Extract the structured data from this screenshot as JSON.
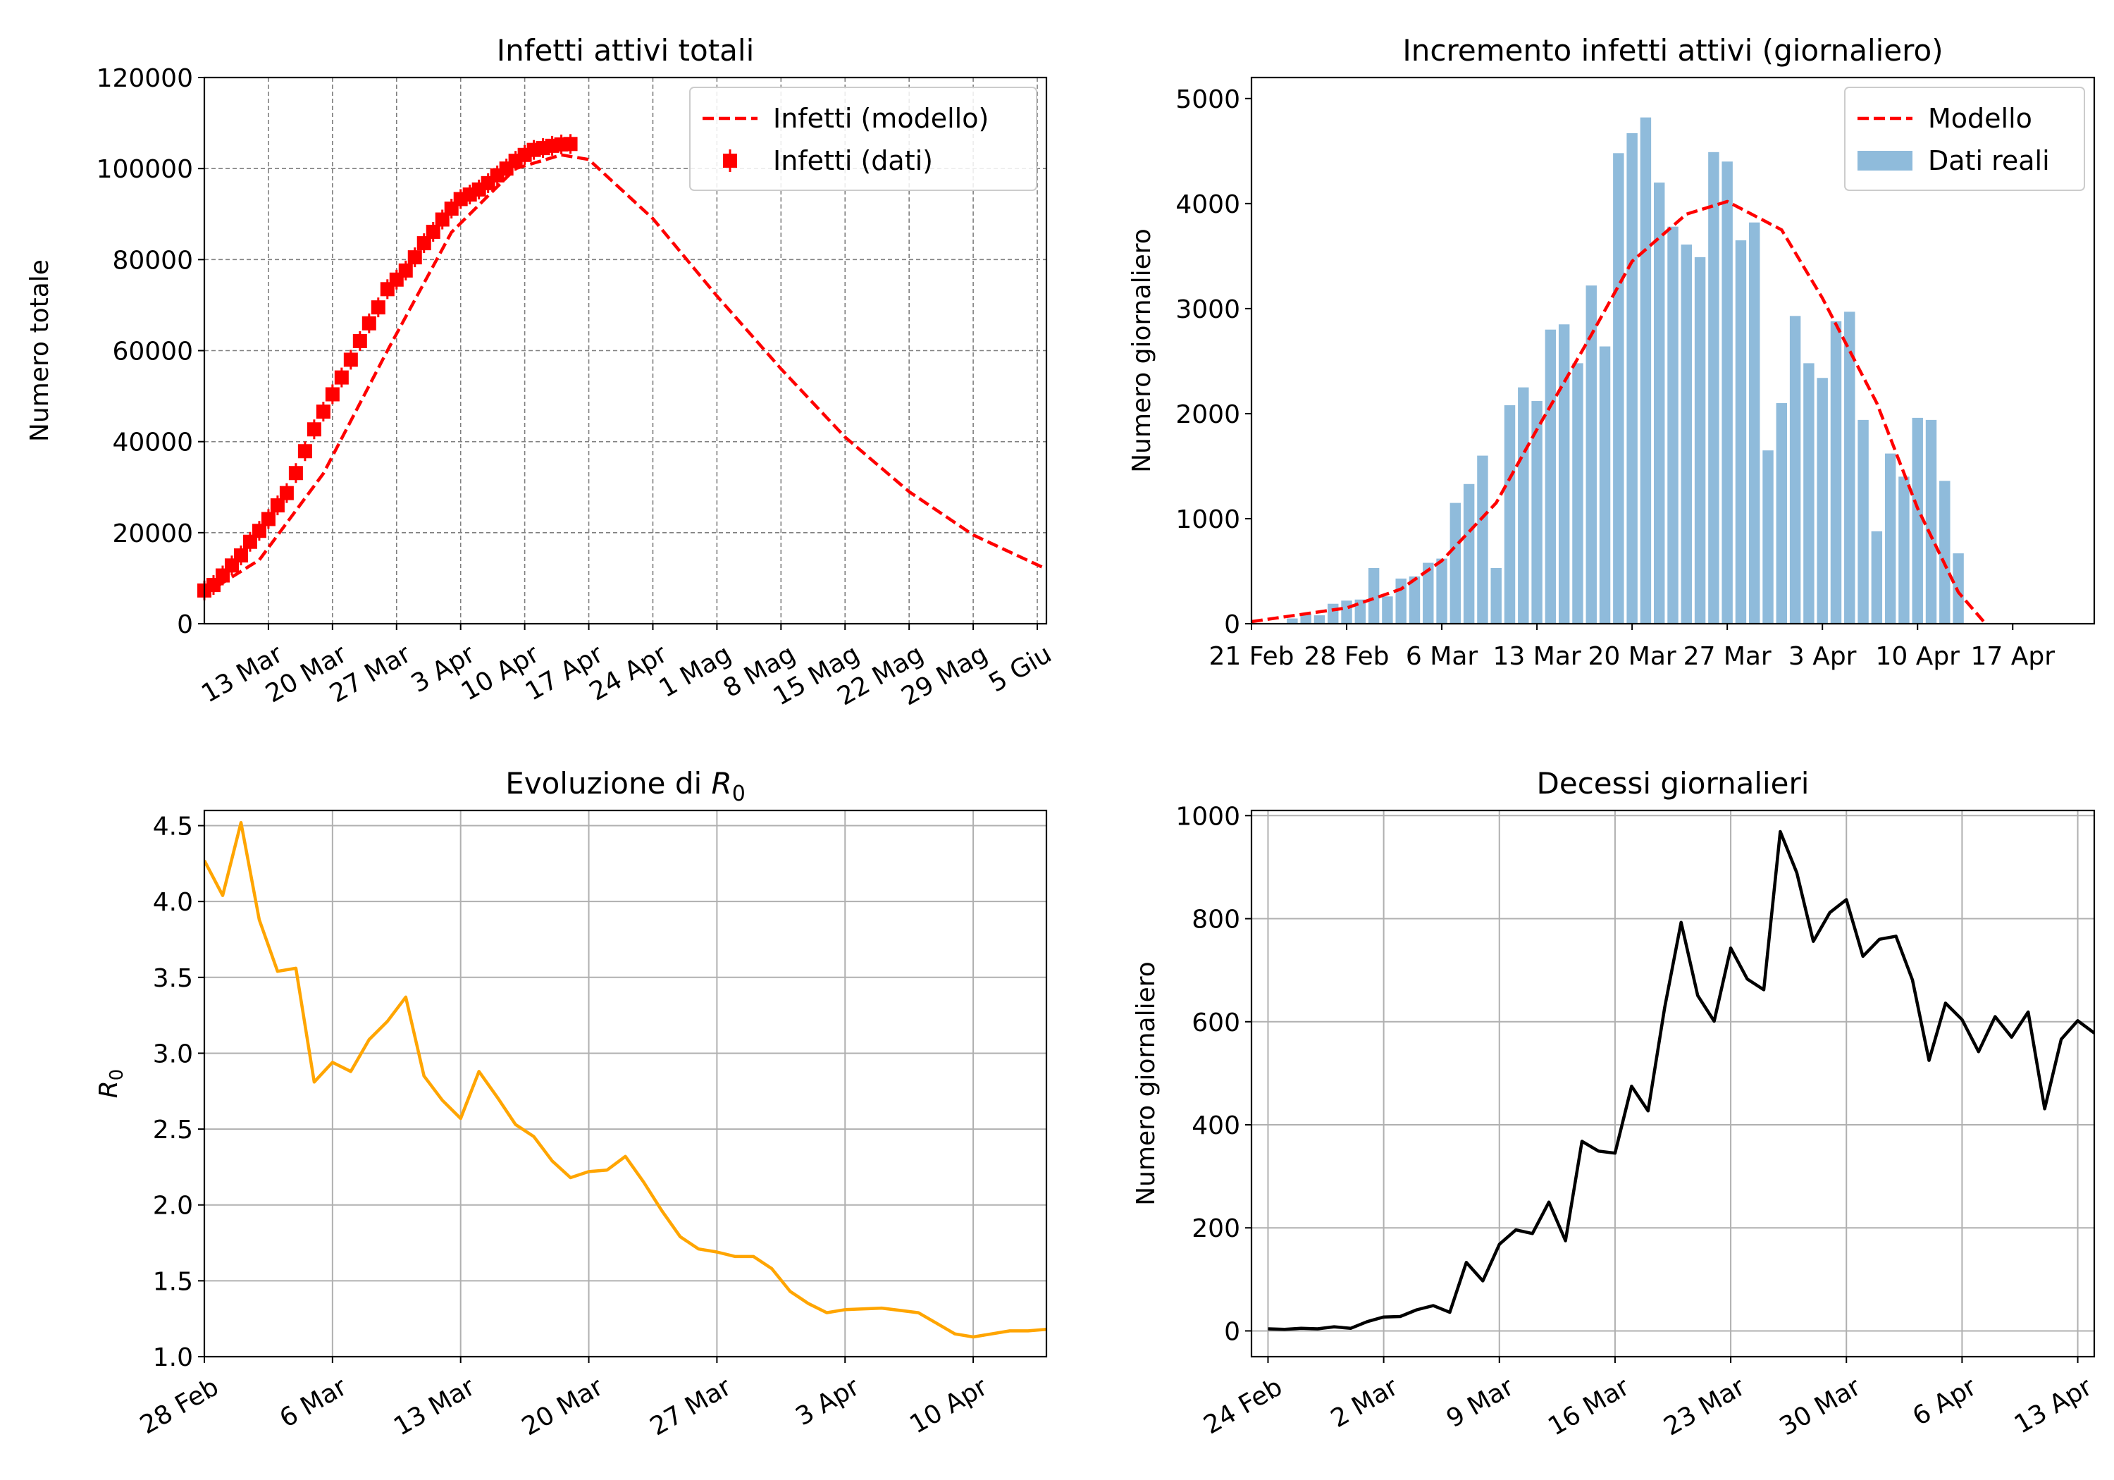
{
  "chart_data": [
    {
      "type": "line",
      "title": "Infetti attivi totali",
      "xlabel": "",
      "ylabel": "Numero totale",
      "grid": true,
      "legend_position": "top-right",
      "xlim": [
        "2020-03-06",
        "2020-06-06"
      ],
      "ylim": [
        0,
        120000
      ],
      "yticks": [
        0,
        20000,
        40000,
        60000,
        80000,
        100000,
        120000
      ],
      "xtick_dates": [
        "2020-03-13",
        "2020-03-20",
        "2020-03-27",
        "2020-04-03",
        "2020-04-10",
        "2020-04-17",
        "2020-04-24",
        "2020-05-01",
        "2020-05-08",
        "2020-05-15",
        "2020-05-22",
        "2020-05-29",
        "2020-06-05"
      ],
      "xtick_labels": [
        "13 Mar",
        "20 Mar",
        "27 Mar",
        "3 Apr",
        "10 Apr",
        "17 Apr",
        "24 Apr",
        "1 Mag",
        "8 Mag",
        "15 Mag",
        "22 Mag",
        "29 Mag",
        "5 Giu"
      ],
      "series": [
        {
          "name": "Infetti (modello)",
          "style": "dashed",
          "color": "#ff0000",
          "x": [
            "2020-03-06",
            "2020-03-12",
            "2020-03-19",
            "2020-03-26",
            "2020-04-02",
            "2020-04-09",
            "2020-04-14",
            "2020-04-17",
            "2020-04-24",
            "2020-05-01",
            "2020-05-08",
            "2020-05-15",
            "2020-05-22",
            "2020-05-29",
            "2020-06-06"
          ],
          "y": [
            6500,
            14000,
            33000,
            60000,
            86000,
            100000,
            103000,
            102000,
            89000,
            72000,
            56000,
            41000,
            29000,
            19500,
            12000
          ]
        },
        {
          "name": "Infetti (dati)",
          "style": "markers",
          "color": "#ff0000",
          "x": [
            "2020-03-06",
            "2020-03-07",
            "2020-03-08",
            "2020-03-09",
            "2020-03-10",
            "2020-03-11",
            "2020-03-12",
            "2020-03-13",
            "2020-03-14",
            "2020-03-15",
            "2020-03-16",
            "2020-03-17",
            "2020-03-18",
            "2020-03-19",
            "2020-03-20",
            "2020-03-21",
            "2020-03-22",
            "2020-03-23",
            "2020-03-24",
            "2020-03-25",
            "2020-03-26",
            "2020-03-27",
            "2020-03-28",
            "2020-03-29",
            "2020-03-30",
            "2020-03-31",
            "2020-04-01",
            "2020-04-02",
            "2020-04-03",
            "2020-04-04",
            "2020-04-05",
            "2020-04-06",
            "2020-04-07",
            "2020-04-08",
            "2020-04-09",
            "2020-04-10",
            "2020-04-11",
            "2020-04-12",
            "2020-04-13",
            "2020-04-14",
            "2020-04-15"
          ],
          "y": [
            7300,
            8500,
            10600,
            12800,
            15000,
            18000,
            20400,
            23000,
            26000,
            28700,
            33100,
            37900,
            42700,
            46600,
            50400,
            54100,
            58000,
            62100,
            66000,
            69500,
            73500,
            75600,
            77600,
            80500,
            83600,
            86100,
            88800,
            91200,
            93300,
            94300,
            95400,
            96800,
            98500,
            100000,
            101700,
            103000,
            104100,
            104500,
            105000,
            105300,
            105400
          ]
        }
      ]
    },
    {
      "type": "bar",
      "title": "Incremento infetti attivi (giornaliero)",
      "xlabel": "",
      "ylabel": "Numero giornaliero",
      "grid": false,
      "legend_position": "top-right",
      "xlim": [
        "2020-02-21",
        "2020-04-23"
      ],
      "ylim": [
        0,
        5200
      ],
      "yticks": [
        0,
        1000,
        2000,
        3000,
        4000,
        5000
      ],
      "xtick_dates": [
        "2020-02-21",
        "2020-02-28",
        "2020-03-06",
        "2020-03-13",
        "2020-03-20",
        "2020-03-27",
        "2020-04-03",
        "2020-04-10",
        "2020-04-17"
      ],
      "xtick_labels": [
        "21 Feb",
        "28 Feb",
        "6 Mar",
        "13 Mar",
        "20 Mar",
        "27 Mar",
        "3 Apr",
        "10 Apr",
        "17 Apr"
      ],
      "series": [
        {
          "name": "Dati reali",
          "color": "#8fbbdb",
          "x": [
            "2020-02-24",
            "2020-02-25",
            "2020-02-26",
            "2020-02-27",
            "2020-02-28",
            "2020-02-29",
            "2020-03-01",
            "2020-03-02",
            "2020-03-03",
            "2020-03-04",
            "2020-03-05",
            "2020-03-06",
            "2020-03-07",
            "2020-03-08",
            "2020-03-09",
            "2020-03-10",
            "2020-03-11",
            "2020-03-12",
            "2020-03-13",
            "2020-03-14",
            "2020-03-15",
            "2020-03-16",
            "2020-03-17",
            "2020-03-18",
            "2020-03-19",
            "2020-03-20",
            "2020-03-21",
            "2020-03-22",
            "2020-03-23",
            "2020-03-24",
            "2020-03-25",
            "2020-03-26",
            "2020-03-27",
            "2020-03-28",
            "2020-03-29",
            "2020-03-30",
            "2020-03-31",
            "2020-04-01",
            "2020-04-02",
            "2020-04-03",
            "2020-04-04",
            "2020-04-05",
            "2020-04-06",
            "2020-04-07",
            "2020-04-08",
            "2020-04-09",
            "2020-04-10",
            "2020-04-11",
            "2020-04-12",
            "2020-04-13",
            "2020-04-14"
          ],
          "values": [
            50,
            90,
            80,
            190,
            220,
            230,
            530,
            260,
            430,
            450,
            580,
            620,
            1150,
            1330,
            1600,
            530,
            2080,
            2250,
            2120,
            2800,
            2850,
            2480,
            3220,
            2640,
            4480,
            4670,
            4820,
            4200,
            3780,
            3610,
            3490,
            4490,
            4400,
            3650,
            3820,
            1650,
            2100,
            2930,
            2480,
            2340,
            2880,
            2970,
            1940,
            880,
            1620,
            1400,
            1960,
            1940,
            1360,
            670,
            0
          ]
        },
        {
          "name": "Modello",
          "style": "dashed",
          "color": "#ff0000",
          "x": [
            "2020-02-21",
            "2020-02-28",
            "2020-03-03",
            "2020-03-06",
            "2020-03-10",
            "2020-03-13",
            "2020-03-17",
            "2020-03-20",
            "2020-03-24",
            "2020-03-27",
            "2020-03-31",
            "2020-04-03",
            "2020-04-07",
            "2020-04-10",
            "2020-04-13",
            "2020-04-15"
          ],
          "y": [
            20,
            150,
            330,
            600,
            1150,
            1850,
            2750,
            3450,
            3900,
            4020,
            3750,
            3100,
            2100,
            1100,
            300,
            0
          ]
        }
      ]
    },
    {
      "type": "line",
      "title": "Evoluzione di R0",
      "xlabel": "",
      "ylabel": "R0",
      "grid": true,
      "xlim": [
        "2020-02-28",
        "2020-04-14"
      ],
      "ylim": [
        1.0,
        4.6
      ],
      "yticks": [
        1.0,
        1.5,
        2.0,
        2.5,
        3.0,
        3.5,
        4.0,
        4.5
      ],
      "ytick_labels": [
        "1.0",
        "1.5",
        "2.0",
        "2.5",
        "3.0",
        "3.5",
        "4.0",
        "4.5"
      ],
      "xtick_dates": [
        "2020-02-28",
        "2020-03-06",
        "2020-03-13",
        "2020-03-20",
        "2020-03-27",
        "2020-04-03",
        "2020-04-10"
      ],
      "xtick_labels": [
        "28 Feb",
        "6 Mar",
        "13 Mar",
        "20 Mar",
        "27 Mar",
        "3 Apr",
        "10 Apr"
      ],
      "series": [
        {
          "color": "#ffa500",
          "x": [
            "2020-02-28",
            "2020-02-29",
            "2020-03-01",
            "2020-03-02",
            "2020-03-03",
            "2020-03-04",
            "2020-03-05",
            "2020-03-06",
            "2020-03-07",
            "2020-03-08",
            "2020-03-09",
            "2020-03-10",
            "2020-03-11",
            "2020-03-12",
            "2020-03-13",
            "2020-03-14",
            "2020-03-15",
            "2020-03-16",
            "2020-03-17",
            "2020-03-18",
            "2020-03-19",
            "2020-03-20",
            "2020-03-21",
            "2020-03-22",
            "2020-03-23",
            "2020-03-24",
            "2020-03-25",
            "2020-03-26",
            "2020-03-27",
            "2020-03-28",
            "2020-03-29",
            "2020-03-30",
            "2020-03-31",
            "2020-04-01",
            "2020-04-02",
            "2020-04-03",
            "2020-04-05",
            "2020-04-07",
            "2020-04-08",
            "2020-04-09",
            "2020-04-10",
            "2020-04-12",
            "2020-04-13",
            "2020-04-14"
          ],
          "y": [
            4.27,
            4.04,
            4.52,
            3.88,
            3.54,
            3.56,
            2.81,
            2.94,
            2.88,
            3.09,
            3.21,
            3.37,
            2.85,
            2.69,
            2.57,
            2.88,
            2.71,
            2.53,
            2.45,
            2.29,
            2.18,
            2.22,
            2.23,
            2.32,
            2.15,
            1.96,
            1.79,
            1.71,
            1.69,
            1.66,
            1.66,
            1.58,
            1.43,
            1.35,
            1.29,
            1.31,
            1.32,
            1.29,
            1.22,
            1.15,
            1.13,
            1.17,
            1.17,
            1.18
          ]
        }
      ]
    },
    {
      "type": "line",
      "title": "Decessi giornalieri",
      "xlabel": "",
      "ylabel": "Numero giornaliero",
      "grid": true,
      "xlim": [
        "2020-02-23",
        "2020-04-14"
      ],
      "ylim": [
        -50,
        1010
      ],
      "yticks": [
        0,
        200,
        400,
        600,
        800,
        1000
      ],
      "xtick_dates": [
        "2020-02-24",
        "2020-03-02",
        "2020-03-09",
        "2020-03-16",
        "2020-03-23",
        "2020-03-30",
        "2020-04-06",
        "2020-04-13"
      ],
      "xtick_labels": [
        "24 Feb",
        "2 Mar",
        "9 Mar",
        "16 Mar",
        "23 Mar",
        "30 Mar",
        "6 Apr",
        "13 Apr"
      ],
      "series": [
        {
          "color": "#000000",
          "x": [
            "2020-02-24",
            "2020-02-25",
            "2020-02-26",
            "2020-02-27",
            "2020-02-28",
            "2020-02-29",
            "2020-03-01",
            "2020-03-02",
            "2020-03-03",
            "2020-03-04",
            "2020-03-05",
            "2020-03-06",
            "2020-03-07",
            "2020-03-08",
            "2020-03-09",
            "2020-03-10",
            "2020-03-11",
            "2020-03-12",
            "2020-03-13",
            "2020-03-14",
            "2020-03-15",
            "2020-03-16",
            "2020-03-17",
            "2020-03-18",
            "2020-03-19",
            "2020-03-20",
            "2020-03-21",
            "2020-03-22",
            "2020-03-23",
            "2020-03-24",
            "2020-03-25",
            "2020-03-26",
            "2020-03-27",
            "2020-03-28",
            "2020-03-29",
            "2020-03-30",
            "2020-03-31",
            "2020-04-01",
            "2020-04-02",
            "2020-04-03",
            "2020-04-04",
            "2020-04-05",
            "2020-04-06",
            "2020-04-07",
            "2020-04-08",
            "2020-04-09",
            "2020-04-10",
            "2020-04-11",
            "2020-04-12",
            "2020-04-13",
            "2020-04-14"
          ],
          "y": [
            4,
            3,
            5,
            4,
            8,
            5,
            18,
            27,
            28,
            41,
            49,
            36,
            133,
            97,
            168,
            196,
            189,
            250,
            175,
            368,
            349,
            345,
            475,
            427,
            627,
            793,
            651,
            601,
            743,
            683,
            662,
            969,
            889,
            756,
            812,
            837,
            727,
            760,
            766,
            681,
            525,
            636,
            604,
            542,
            610,
            570,
            619,
            431,
            566,
            602,
            578
          ]
        }
      ]
    }
  ]
}
